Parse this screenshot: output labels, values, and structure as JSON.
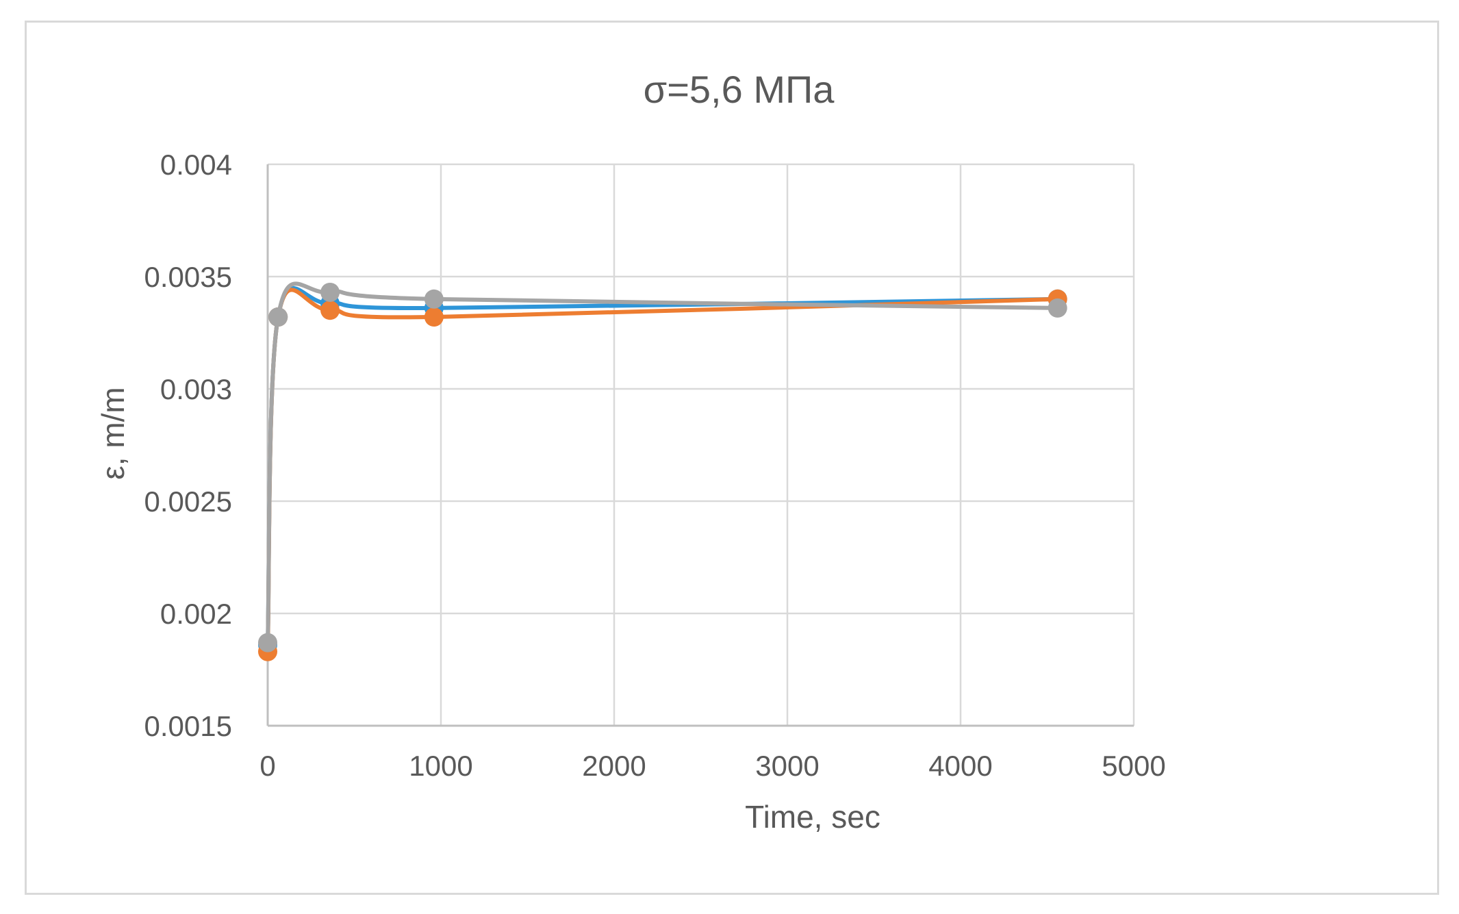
{
  "chart_data": {
    "type": "line",
    "title": "σ=5,6 МПа",
    "xlabel": "Time, sec",
    "ylabel": "ε, m/m",
    "xlim": [
      0,
      5000
    ],
    "ylim": [
      0.0015,
      0.004
    ],
    "x_ticks": [
      "0",
      "1000",
      "2000",
      "3000",
      "4000",
      "5000"
    ],
    "y_ticks": [
      "0.0015",
      "0.002",
      "0.0025",
      "0.003",
      "0.0035",
      "0.004"
    ],
    "x_tick_values": [
      0,
      1000,
      2000,
      3000,
      4000,
      5000
    ],
    "y_tick_values": [
      0.0015,
      0.002,
      0.0025,
      0.003,
      0.0035,
      0.004
    ],
    "grid": true,
    "legend": "none",
    "smooth": true,
    "x": [
      0,
      60,
      360,
      960,
      4560
    ],
    "series": [
      {
        "color": "#2e95d8",
        "values": [
          0.00186,
          0.00332,
          0.00338,
          0.00336,
          0.0034
        ]
      },
      {
        "color": "#ed7d31",
        "values": [
          0.00183,
          0.00332,
          0.00335,
          0.00332,
          0.0034
        ]
      },
      {
        "color": "#a5a5a5",
        "values": [
          0.00187,
          0.00332,
          0.00343,
          0.0034,
          0.00336
        ]
      }
    ]
  }
}
